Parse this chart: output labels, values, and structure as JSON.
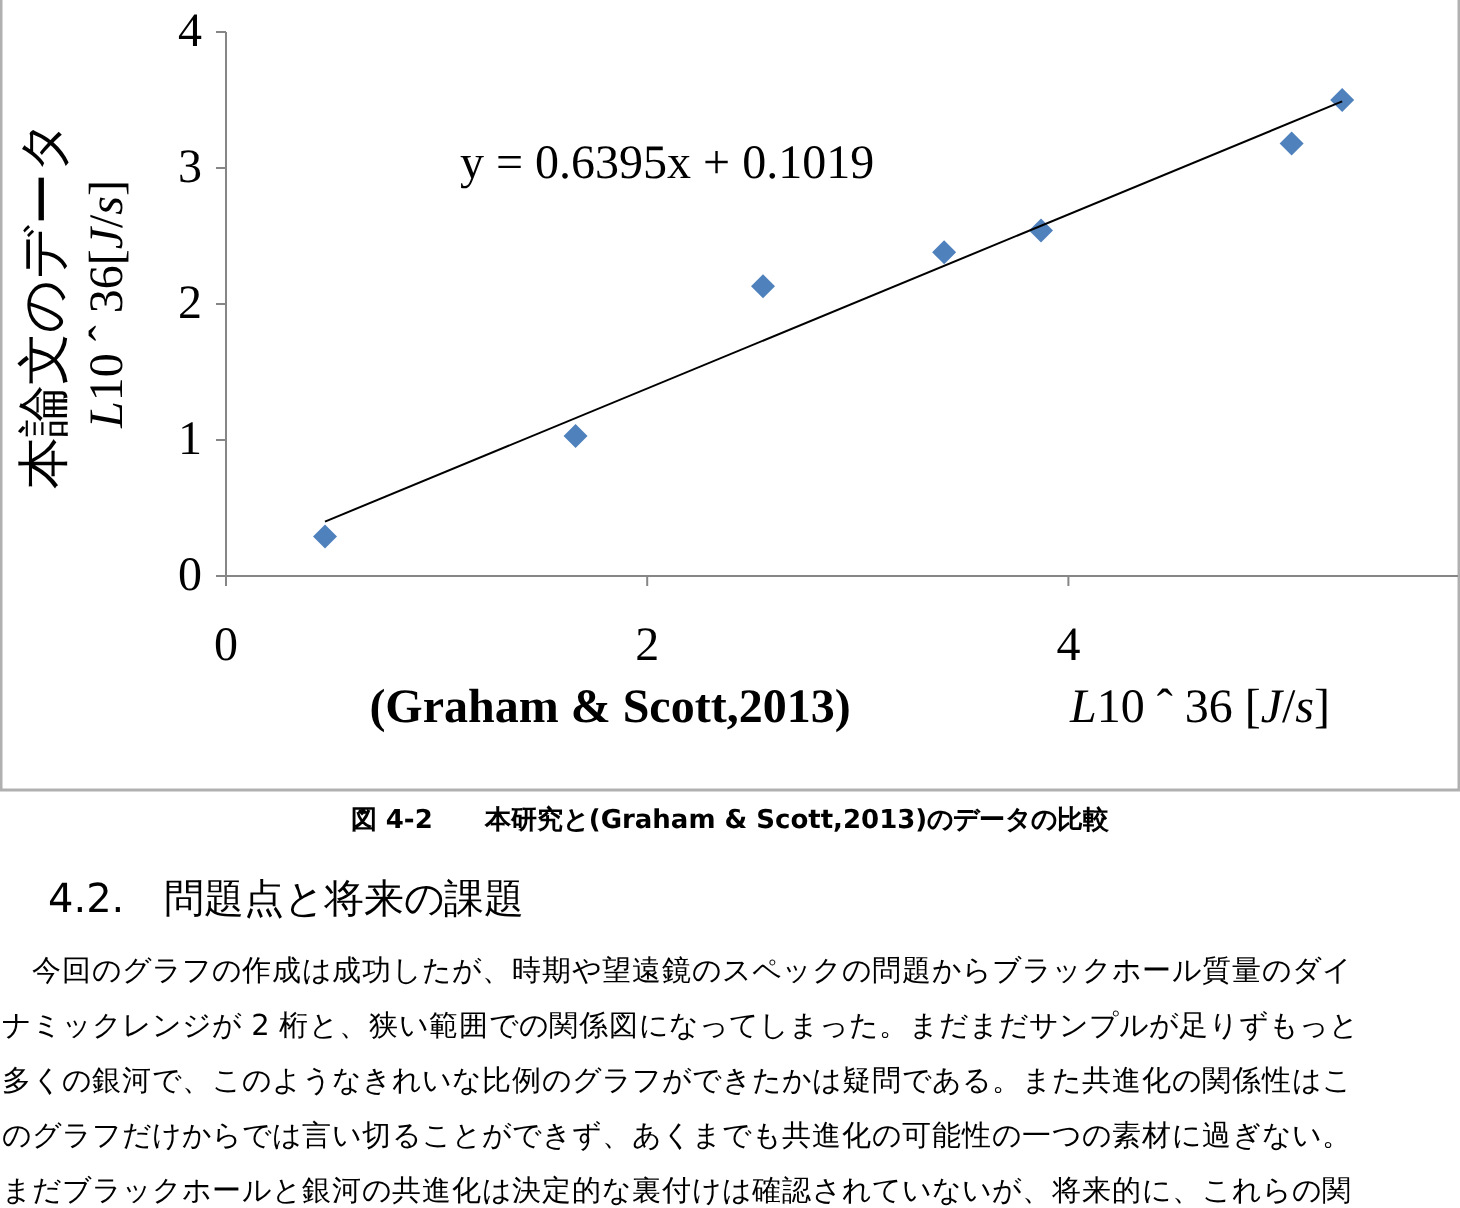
{
  "chart_data": {
    "type": "scatter",
    "xlabel": "(Graham & Scott,2013)",
    "ylabel": "本論文のデータ\nL10 ˆ 36[J/s]",
    "xlim": [
      0,
      5.85
    ],
    "ylim": [
      0,
      4
    ],
    "xticks": [
      0,
      2,
      4
    ],
    "yticks": [
      0,
      1,
      2,
      3,
      4
    ],
    "marker": "diamond",
    "grid": false,
    "series": [
      {
        "color": "#4f81bd",
        "x": [
          0.47,
          1.66,
          2.55,
          3.41,
          3.87,
          5.06,
          5.3
        ],
        "values": [
          0.29,
          1.03,
          2.13,
          2.38,
          2.54,
          3.18,
          3.5
        ]
      },
      {
        "type": "line",
        "color": "#000000",
        "marker": "none",
        "x": [
          0.47,
          5.3
        ],
        "values": [
          0.4,
          3.49
        ]
      }
    ],
    "annotations": [
      "y = 0.6395x + 0.1019",
      "L10 ˆ 36 [J/s]",
      "図 4-2　　本研究と(Graham & Scott,2013)のデータの比較",
      "4.2.　問題点と将来の課題",
      "　今回のグラフの作成は成功したが、時期や望遠鏡のスペックの問題からブラックホール質量のダイ",
      "ナミックレンジが 2 桁と、狭い範囲での関係図になってしまった。まだまだサンプルが足りずもっと",
      "多くの銀河で、このようなきれいな比例のグラフができたかは疑問である。また共進化の関係性はこ",
      "のグラフだけからでは言い切ることができず、あくまでも共進化の可能性の一つの素材に過ぎない。",
      "まだブラックホールと銀河の共進化は決定的な裏付けは確認されていないが、将来的に、これらの関"
    ]
  }
}
